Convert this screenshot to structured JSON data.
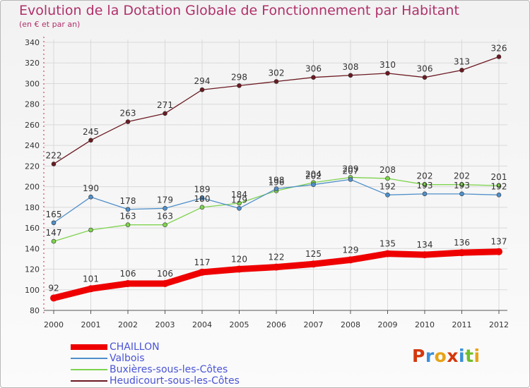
{
  "title": "Evolution de la Dotation Globale de Fonctionnement par Habitant",
  "subtitle": "(en € et par an)",
  "brand": {
    "letters": [
      "P",
      "r",
      "o",
      "x",
      "i",
      "t",
      "i"
    ],
    "colors": [
      "#d4380d",
      "#3b8fd9",
      "#e8a317",
      "#d4380d",
      "#3b8fd9",
      "#6fbf2a",
      "#e8a317"
    ]
  },
  "chart_data": {
    "type": "line",
    "x": [
      "2000",
      "2001",
      "2002",
      "2003",
      "2004",
      "2005",
      "2006",
      "2007",
      "2008",
      "2009",
      "2010",
      "2011",
      "2012"
    ],
    "ylim": [
      80,
      340
    ],
    "yticks": [
      80,
      100,
      120,
      140,
      160,
      180,
      200,
      220,
      240,
      260,
      280,
      300,
      320,
      340
    ],
    "grid": true,
    "legend_position": "bottom-left",
    "series": [
      {
        "name": "CHAILLON",
        "color": "#ee0000",
        "values": [
          92,
          101,
          106,
          106,
          117,
          120,
          122,
          125,
          129,
          135,
          134,
          136,
          137
        ],
        "labels": [
          "92",
          "101",
          "106",
          "106",
          "117",
          "120",
          "122",
          "125",
          "129",
          "135",
          "134",
          "136",
          "137"
        ]
      },
      {
        "name": "Valbois",
        "color": "#4f8fc9",
        "values": [
          165,
          190,
          178,
          179,
          189,
          179,
          198,
          202,
          207,
          192,
          193,
          193,
          192
        ],
        "labels": [
          "165",
          "190",
          "178",
          "179",
          "189",
          "179",
          "198",
          "202",
          "207",
          "192",
          "193",
          "193",
          "192"
        ]
      },
      {
        "name": "Buxières-sous-les-Côtes",
        "color": "#7ed34e",
        "values": [
          147,
          158,
          163,
          163,
          180,
          184,
          196,
          204,
          209,
          208,
          202,
          202,
          201
        ],
        "labels": [
          "147",
          "",
          "163",
          "163",
          "180",
          "184",
          "196",
          "204",
          "209",
          "208",
          "202",
          "202",
          "201"
        ]
      },
      {
        "name": "Heudicourt-sous-les-Côtes",
        "color": "#6b1a22",
        "values": [
          222,
          245,
          263,
          271,
          294,
          298,
          302,
          306,
          308,
          310,
          306,
          313,
          326
        ],
        "labels": [
          "222",
          "245",
          "263",
          "271",
          "294",
          "298",
          "302",
          "306",
          "308",
          "310",
          "306",
          "313",
          "326"
        ]
      }
    ]
  }
}
